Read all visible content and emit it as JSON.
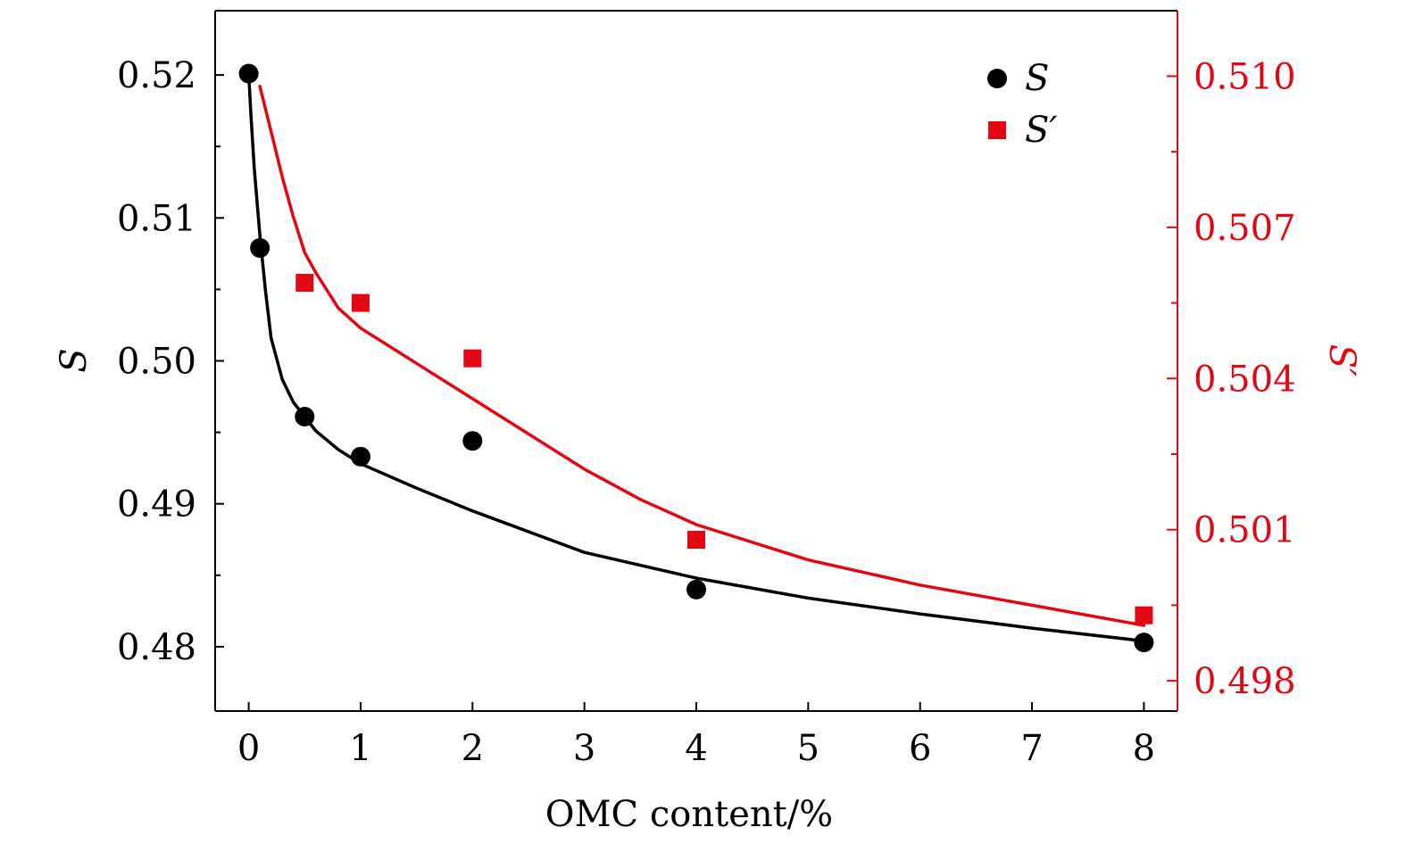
{
  "chart_data": {
    "type": "scatter",
    "title": "",
    "xlabel": "OMC content/%",
    "ylabel_left": "S",
    "ylabel_right": "S′",
    "xlim": [
      -0.3,
      8.3
    ],
    "ylim_left": [
      0.4755,
      0.5245
    ],
    "ylim_right": [
      0.4974,
      0.5113
    ],
    "x_ticks": [
      "0",
      "1",
      "2",
      "3",
      "4",
      "5",
      "6",
      "7",
      "8"
    ],
    "y_left_ticks": [
      "0.48",
      "0.49",
      "0.50",
      "0.51",
      "0.52"
    ],
    "y_right_ticks": [
      "0.498",
      "0.501",
      "0.504",
      "0.507",
      "0.510"
    ],
    "legend": {
      "position": "top-right",
      "entries": [
        "S",
        "S′"
      ]
    },
    "colors": {
      "left": "#000000",
      "right": "#e30613"
    },
    "series": [
      {
        "name": "S",
        "axis": "left",
        "marker": "circle",
        "color": "#000000",
        "x": [
          0,
          0.1,
          0.5,
          1,
          2,
          4,
          8
        ],
        "values": [
          0.5201,
          0.5079,
          0.4961,
          0.4933,
          0.4944,
          0.484,
          0.4803
        ],
        "fit": {
          "x": [
            0,
            0.02,
            0.05,
            0.1,
            0.15,
            0.2,
            0.3,
            0.4,
            0.5,
            0.6,
            0.8,
            1,
            1.5,
            2,
            3,
            4,
            5,
            6,
            7,
            8
          ],
          "y": [
            0.5201,
            0.5172,
            0.5134,
            0.5088,
            0.5049,
            0.5016,
            0.4987,
            0.4971,
            0.4961,
            0.4951,
            0.4938,
            0.4928,
            0.4911,
            0.4895,
            0.4866,
            0.4848,
            0.4834,
            0.4823,
            0.4813,
            0.4804
          ]
        }
      },
      {
        "name": "S′",
        "axis": "right",
        "marker": "square",
        "color": "#e30613",
        "x": [
          0.5,
          1,
          2,
          4,
          8
        ],
        "values": [
          0.5059,
          0.5055,
          0.5044,
          0.5008,
          0.4993
        ],
        "fit": {
          "x": [
            0.1,
            0.2,
            0.3,
            0.4,
            0.5,
            0.6,
            0.8,
            1,
            1.5,
            2,
            2.5,
            3,
            3.5,
            4,
            5,
            6,
            7,
            8
          ],
          "y": [
            0.5098,
            0.5089,
            0.508,
            0.5072,
            0.5065,
            0.5061,
            0.5054,
            0.505,
            0.5043,
            0.5036,
            0.5029,
            0.5022,
            0.5016,
            0.5011,
            0.5004,
            0.4999,
            0.4995,
            0.4991
          ]
        }
      }
    ]
  }
}
